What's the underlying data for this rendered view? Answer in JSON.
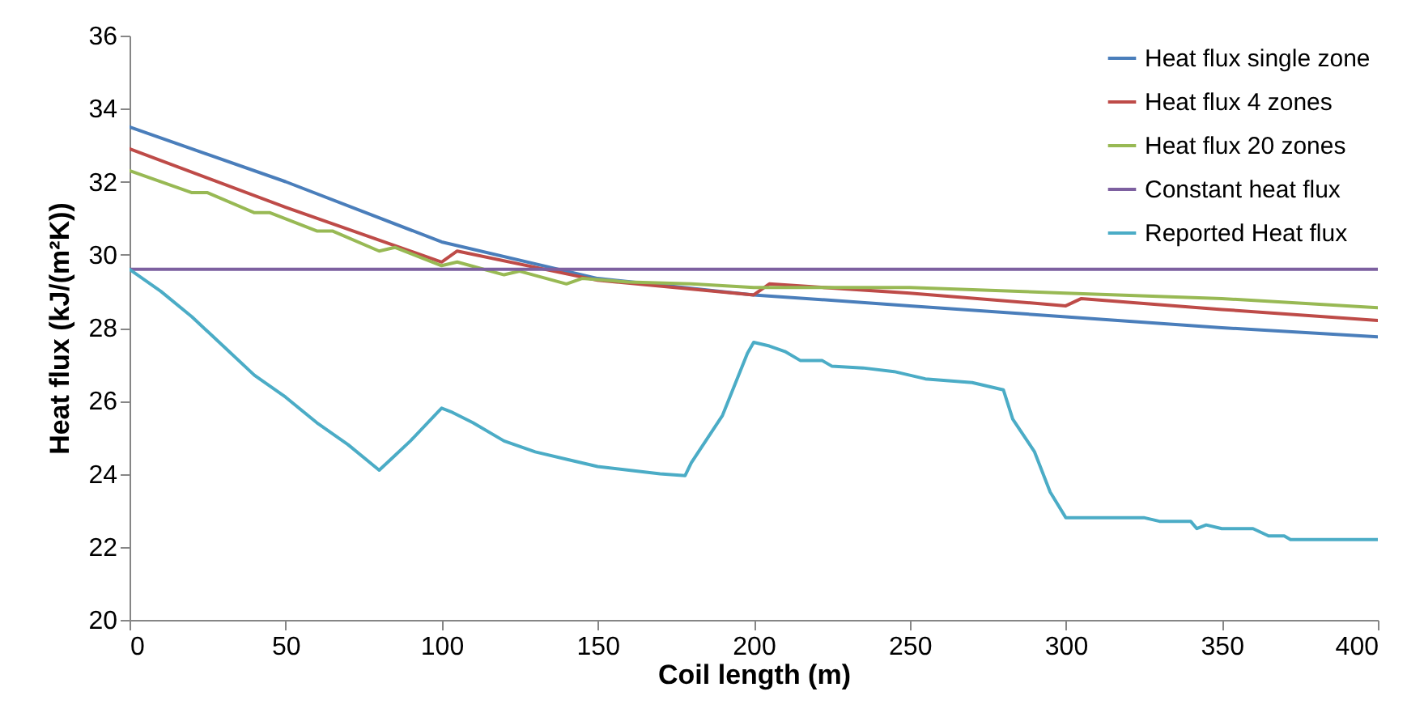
{
  "chart_data": {
    "type": "line",
    "xlabel": "Coil length (m)",
    "ylabel": "Heat flux (kJ/(m²K))",
    "xlim": [
      0,
      400
    ],
    "xticks": [
      0,
      50,
      100,
      150,
      200,
      250,
      300,
      350,
      400
    ],
    "ylim": [
      20,
      36
    ],
    "yticks": [
      20,
      22,
      24,
      26,
      28,
      30,
      32,
      34,
      36
    ],
    "grid": false,
    "legend": "top right",
    "series": [
      {
        "name": "Heat flux single zone",
        "color": "#4a7ebb",
        "x": [
          0,
          50,
          100,
          150,
          200,
          250,
          300,
          350,
          400
        ],
        "values": [
          33.5,
          32.0,
          30.35,
          29.35,
          28.9,
          28.6,
          28.3,
          28.0,
          27.75
        ]
      },
      {
        "name": "Heat flux 4 zones",
        "color": "#be4b48",
        "x": [
          0,
          50,
          100,
          105,
          150,
          200,
          205,
          250,
          300,
          305,
          350,
          400
        ],
        "values": [
          32.9,
          31.3,
          29.8,
          30.1,
          29.3,
          28.9,
          29.2,
          28.95,
          28.6,
          28.8,
          28.5,
          28.2
        ]
      },
      {
        "name": "Heat flux 20 zones",
        "color": "#98b954",
        "x": [
          0,
          20,
          25,
          40,
          45,
          60,
          65,
          80,
          85,
          100,
          105,
          120,
          125,
          140,
          145,
          160,
          180,
          200,
          250,
          300,
          350,
          400
        ],
        "values": [
          32.3,
          31.7,
          31.7,
          31.15,
          31.15,
          30.65,
          30.65,
          30.1,
          30.2,
          29.7,
          29.8,
          29.45,
          29.55,
          29.2,
          29.35,
          29.25,
          29.2,
          29.1,
          29.1,
          28.95,
          28.8,
          28.55
        ]
      },
      {
        "name": "Constant heat flux",
        "color": "#7d60a0",
        "x": [
          0,
          400
        ],
        "values": [
          29.6,
          29.6
        ]
      },
      {
        "name": "Reported Heat flux",
        "color": "#4bacc6",
        "x": [
          0,
          10,
          20,
          30,
          40,
          50,
          60,
          70,
          80,
          85,
          90,
          100,
          103,
          110,
          120,
          130,
          140,
          150,
          160,
          170,
          178,
          180,
          190,
          198,
          200,
          205,
          210,
          215,
          222,
          225,
          235,
          245,
          250,
          255,
          270,
          280,
          283,
          290,
          295,
          300,
          325,
          330,
          340,
          342,
          345,
          350,
          360,
          365,
          370,
          372,
          400
        ],
        "values": [
          29.6,
          29.0,
          28.3,
          27.5,
          26.7,
          26.1,
          25.4,
          24.8,
          24.1,
          24.5,
          24.9,
          25.8,
          25.7,
          25.4,
          24.9,
          24.6,
          24.4,
          24.2,
          24.1,
          24.0,
          23.95,
          24.3,
          25.6,
          27.3,
          27.6,
          27.5,
          27.35,
          27.1,
          27.1,
          26.95,
          26.9,
          26.8,
          26.7,
          26.6,
          26.5,
          26.3,
          25.5,
          24.6,
          23.5,
          22.8,
          22.8,
          22.7,
          22.7,
          22.5,
          22.6,
          22.5,
          22.5,
          22.3,
          22.3,
          22.2,
          22.2
        ]
      }
    ]
  }
}
